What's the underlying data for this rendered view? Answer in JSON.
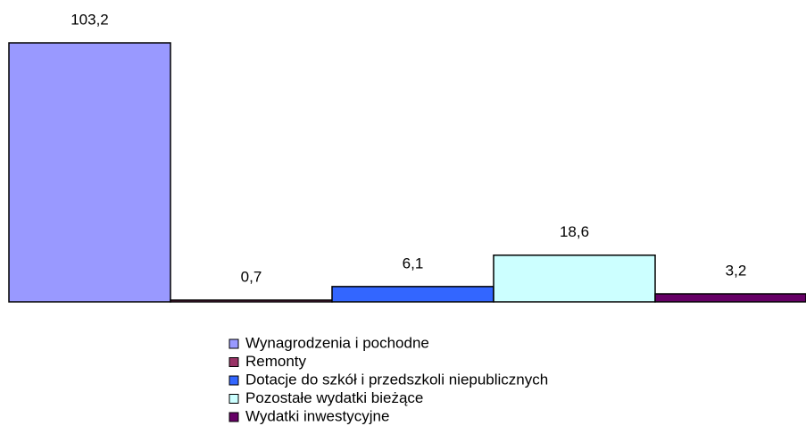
{
  "chart_data": {
    "type": "bar",
    "series": [
      {
        "name": "Wynagrodzenia i pochodne",
        "color": "#9999ff",
        "values": [
          103.2
        ],
        "value_labels": [
          "103,2"
        ]
      },
      {
        "name": "Remonty",
        "color": "#993366",
        "values": [
          0.7
        ],
        "value_labels": [
          "0,7"
        ]
      },
      {
        "name": "Dotacje do szkół i przedszkoli niepublicznych",
        "color": "#3366ff",
        "values": [
          6.1
        ],
        "value_labels": [
          "6,1"
        ]
      },
      {
        "name": "Pozostałe wydatki bieżące",
        "color": "#ccffff",
        "values": [
          18.6
        ],
        "value_labels": [
          "18,6"
        ]
      },
      {
        "name": "Wydatki inwestycyjne",
        "color": "#660066",
        "values": [
          3.2
        ],
        "value_labels": [
          "3,2"
        ]
      }
    ]
  }
}
